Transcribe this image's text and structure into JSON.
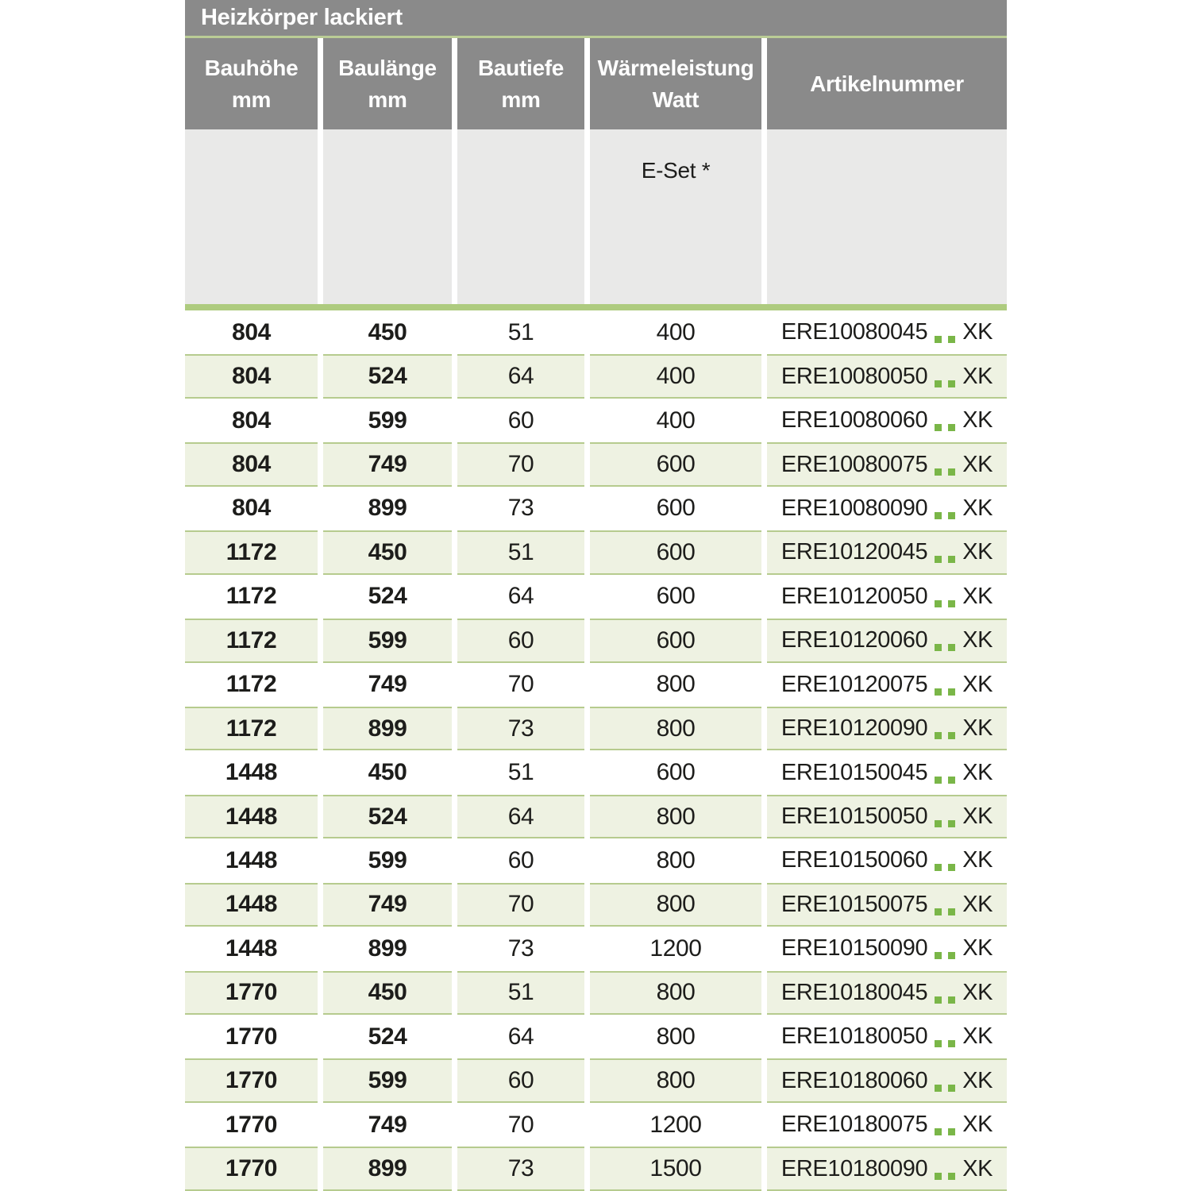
{
  "page": {
    "title_bar": "Heizkörper lackiert"
  },
  "table": {
    "columns": [
      {
        "label": "Bauhöhe",
        "unit": "mm"
      },
      {
        "label": "Baulänge",
        "unit": "mm"
      },
      {
        "label": "Bautiefe",
        "unit": "mm"
      },
      {
        "label": "Wärmeleistung",
        "unit": "Watt"
      },
      {
        "label": "Artikelnummer",
        "unit": ""
      }
    ],
    "subheader_note": "E-Set *",
    "article_placeholder": "..",
    "rows": [
      {
        "bauhoehe": "804",
        "baulaenge": "450",
        "bautiefe": "51",
        "watt": "400",
        "artikel_code": "ERE10080045",
        "artikel_suffix": "XK"
      },
      {
        "bauhoehe": "804",
        "baulaenge": "524",
        "bautiefe": "64",
        "watt": "400",
        "artikel_code": "ERE10080050",
        "artikel_suffix": "XK"
      },
      {
        "bauhoehe": "804",
        "baulaenge": "599",
        "bautiefe": "60",
        "watt": "400",
        "artikel_code": "ERE10080060",
        "artikel_suffix": "XK"
      },
      {
        "bauhoehe": "804",
        "baulaenge": "749",
        "bautiefe": "70",
        "watt": "600",
        "artikel_code": "ERE10080075",
        "artikel_suffix": "XK"
      },
      {
        "bauhoehe": "804",
        "baulaenge": "899",
        "bautiefe": "73",
        "watt": "600",
        "artikel_code": "ERE10080090",
        "artikel_suffix": "XK"
      },
      {
        "bauhoehe": "1172",
        "baulaenge": "450",
        "bautiefe": "51",
        "watt": "600",
        "artikel_code": "ERE10120045",
        "artikel_suffix": "XK"
      },
      {
        "bauhoehe": "1172",
        "baulaenge": "524",
        "bautiefe": "64",
        "watt": "600",
        "artikel_code": "ERE10120050",
        "artikel_suffix": "XK"
      },
      {
        "bauhoehe": "1172",
        "baulaenge": "599",
        "bautiefe": "60",
        "watt": "600",
        "artikel_code": "ERE10120060",
        "artikel_suffix": "XK"
      },
      {
        "bauhoehe": "1172",
        "baulaenge": "749",
        "bautiefe": "70",
        "watt": "800",
        "artikel_code": "ERE10120075",
        "artikel_suffix": "XK"
      },
      {
        "bauhoehe": "1172",
        "baulaenge": "899",
        "bautiefe": "73",
        "watt": "800",
        "artikel_code": "ERE10120090",
        "artikel_suffix": "XK"
      },
      {
        "bauhoehe": "1448",
        "baulaenge": "450",
        "bautiefe": "51",
        "watt": "600",
        "artikel_code": "ERE10150045",
        "artikel_suffix": "XK"
      },
      {
        "bauhoehe": "1448",
        "baulaenge": "524",
        "bautiefe": "64",
        "watt": "800",
        "artikel_code": "ERE10150050",
        "artikel_suffix": "XK"
      },
      {
        "bauhoehe": "1448",
        "baulaenge": "599",
        "bautiefe": "60",
        "watt": "800",
        "artikel_code": "ERE10150060",
        "artikel_suffix": "XK"
      },
      {
        "bauhoehe": "1448",
        "baulaenge": "749",
        "bautiefe": "70",
        "watt": "800",
        "artikel_code": "ERE10150075",
        "artikel_suffix": "XK"
      },
      {
        "bauhoehe": "1448",
        "baulaenge": "899",
        "bautiefe": "73",
        "watt": "1200",
        "artikel_code": "ERE10150090",
        "artikel_suffix": "XK"
      },
      {
        "bauhoehe": "1770",
        "baulaenge": "450",
        "bautiefe": "51",
        "watt": "800",
        "artikel_code": "ERE10180045",
        "artikel_suffix": "XK"
      },
      {
        "bauhoehe": "1770",
        "baulaenge": "524",
        "bautiefe": "64",
        "watt": "800",
        "artikel_code": "ERE10180050",
        "artikel_suffix": "XK"
      },
      {
        "bauhoehe": "1770",
        "baulaenge": "599",
        "bautiefe": "60",
        "watt": "800",
        "artikel_code": "ERE10180060",
        "artikel_suffix": "XK"
      },
      {
        "bauhoehe": "1770",
        "baulaenge": "749",
        "bautiefe": "70",
        "watt": "1200",
        "artikel_code": "ERE10180075",
        "artikel_suffix": "XK"
      },
      {
        "bauhoehe": "1770",
        "baulaenge": "899",
        "bautiefe": "73",
        "watt": "1500",
        "artikel_code": "ERE10180090",
        "artikel_suffix": "XK"
      }
    ]
  },
  "colors": {
    "header_gray": "#8a8a8a",
    "subheader_gray": "#e9e9e8",
    "row_tint_green": "#eef2e2",
    "row_border_green": "#b6cb8e",
    "title_divider_green": "#bacc95",
    "section_bar_green": "#aecb7f",
    "dot_green": "#7ab648",
    "text_dark": "#1d1d1b",
    "header_text": "#ffffff"
  }
}
